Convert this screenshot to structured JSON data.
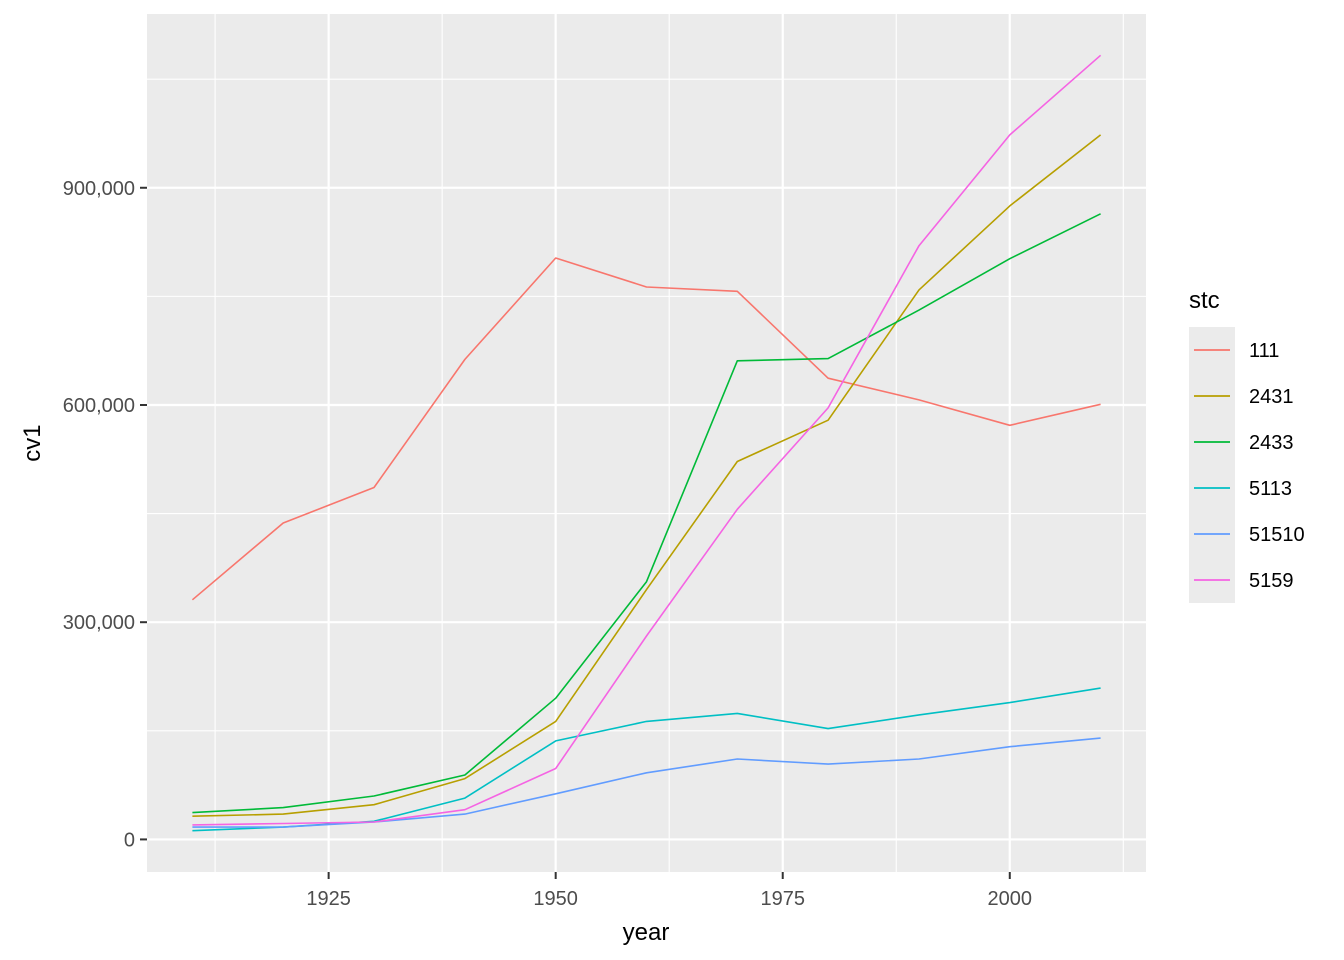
{
  "chart_data": {
    "type": "line",
    "xlabel": "year",
    "ylabel": "cv1",
    "xlim": [
      1905,
      2015
    ],
    "ylim": [
      -45000,
      1140000
    ],
    "x_ticks": [
      1925,
      1950,
      1975,
      2000
    ],
    "x_tick_labels": [
      "1925",
      "1950",
      "1975",
      "2000"
    ],
    "x_minor_ticks": [
      1912.5,
      1937.5,
      1962.5,
      1987.5,
      2012.5
    ],
    "y_ticks": [
      0,
      300000,
      600000,
      900000
    ],
    "y_tick_labels": [
      "0",
      "300,000",
      "600,000",
      "900,000"
    ],
    "y_minor_ticks": [
      150000,
      450000,
      750000,
      1050000
    ],
    "grid": true,
    "legend": {
      "title": "stc",
      "position": "right"
    },
    "x": [
      1910,
      1920,
      1930,
      1940,
      1950,
      1960,
      1970,
      1980,
      1990,
      2000,
      2010
    ],
    "series": [
      {
        "name": "111",
        "color": "#F8766D",
        "values": [
          331000,
          437000,
          486000,
          663000,
          803000,
          763000,
          757000,
          637000,
          607000,
          572000,
          601000
        ]
      },
      {
        "name": "2431",
        "color": "#B79F00",
        "values": [
          32000,
          35000,
          48000,
          84000,
          163000,
          345000,
          522000,
          579000,
          759000,
          875000,
          973000
        ]
      },
      {
        "name": "2433",
        "color": "#00BA38",
        "values": [
          37000,
          44000,
          60000,
          89000,
          195000,
          356000,
          661000,
          664000,
          731000,
          802000,
          864000
        ]
      },
      {
        "name": "5113",
        "color": "#00BFC4",
        "values": [
          12000,
          17000,
          25000,
          57000,
          136000,
          163000,
          174000,
          153000,
          172000,
          189000,
          209000
        ]
      },
      {
        "name": "51510",
        "color": "#619CFF",
        "values": [
          17000,
          17000,
          24000,
          35000,
          63000,
          92000,
          111000,
          104000,
          111000,
          128000,
          140000
        ]
      },
      {
        "name": "5159",
        "color": "#F564E3",
        "values": [
          20000,
          22000,
          24000,
          41000,
          98000,
          281000,
          456000,
          596000,
          820000,
          973000,
          1083000
        ]
      }
    ]
  }
}
